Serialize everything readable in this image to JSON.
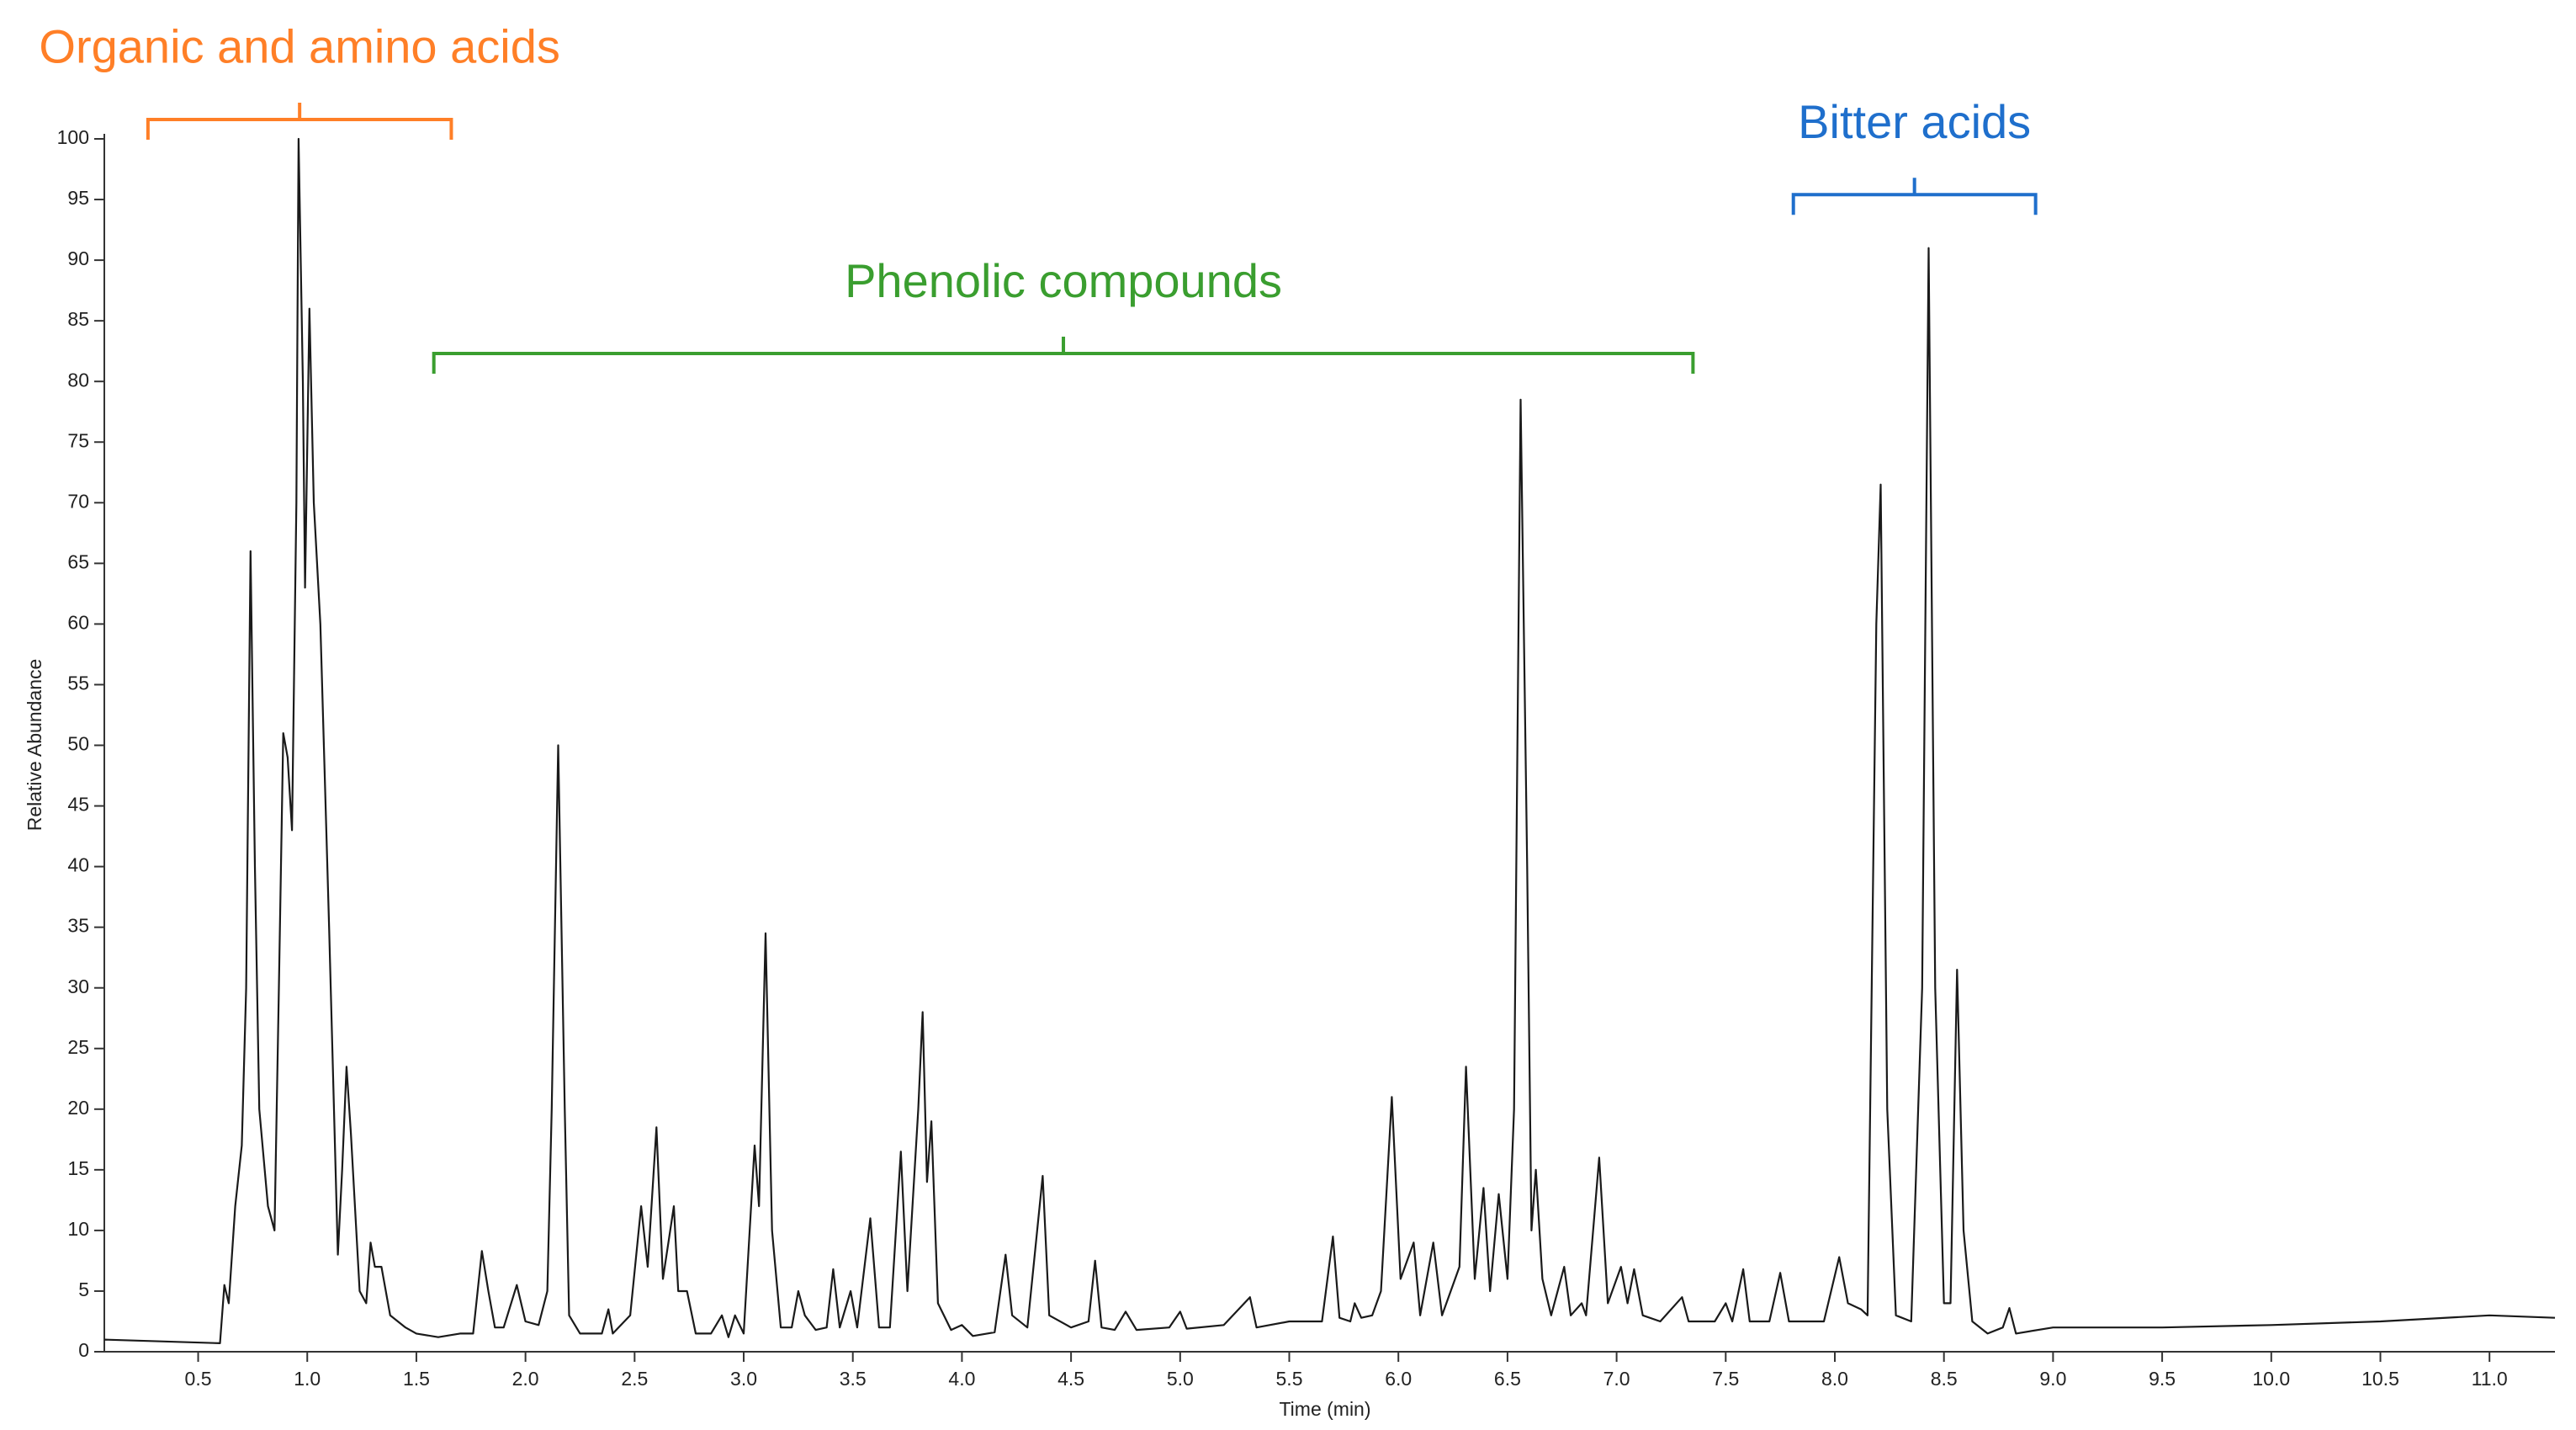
{
  "chart_data": {
    "type": "line",
    "x_label": "Time (min)",
    "y_label": "Relative Abundance",
    "color": "#1a1a1a",
    "xlim": [
      0.07,
      11.3
    ],
    "ylim": [
      0,
      100
    ],
    "xticks": [
      0.5,
      {
        "value": 1,
        "label": "1.0"
      },
      1.5,
      {
        "value": 2,
        "label": "2.0"
      },
      2.5,
      {
        "value": 3,
        "label": "3.0"
      },
      3.5,
      {
        "value": 4,
        "label": "4.0"
      },
      4.5,
      {
        "value": 5,
        "label": "5.0"
      },
      5.5,
      {
        "value": 6,
        "label": "6.0"
      },
      6.5,
      {
        "value": 7,
        "label": "7.0"
      },
      7.5,
      {
        "value": 8,
        "label": "8.0"
      },
      8.5,
      {
        "value": 9,
        "label": "9.0"
      },
      9.5,
      {
        "value": 10,
        "label": "10.0"
      },
      10.5,
      {
        "value": 11,
        "label": "11.0"
      }
    ],
    "yticks": [
      0,
      5,
      10,
      15,
      20,
      25,
      30,
      35,
      40,
      45,
      50,
      55,
      60,
      65,
      70,
      75,
      80,
      85,
      90,
      95,
      100
    ],
    "x": [
      0.07,
      0.6,
      0.62,
      0.64,
      0.67,
      0.7,
      0.72,
      0.74,
      0.76,
      0.78,
      0.82,
      0.85,
      0.87,
      0.89,
      0.91,
      0.93,
      0.95,
      0.96,
      0.98,
      0.99,
      1.01,
      1.03,
      1.06,
      1.1,
      1.14,
      1.16,
      1.18,
      1.2,
      1.24,
      1.27,
      1.29,
      1.31,
      1.34,
      1.38,
      1.45,
      1.5,
      1.6,
      1.7,
      1.76,
      1.8,
      1.83,
      1.86,
      1.9,
      1.96,
      2.0,
      2.06,
      2.1,
      2.12,
      2.15,
      2.18,
      2.2,
      2.25,
      2.35,
      2.38,
      2.4,
      2.48,
      2.53,
      2.56,
      2.6,
      2.63,
      2.68,
      2.7,
      2.74,
      2.78,
      2.85,
      2.9,
      2.93,
      2.96,
      3.0,
      3.05,
      3.07,
      3.1,
      3.13,
      3.17,
      3.22,
      3.25,
      3.28,
      3.33,
      3.38,
      3.41,
      3.44,
      3.49,
      3.52,
      3.58,
      3.62,
      3.67,
      3.72,
      3.75,
      3.8,
      3.82,
      3.84,
      3.86,
      3.89,
      3.95,
      4.0,
      4.05,
      4.15,
      4.2,
      4.23,
      4.3,
      4.37,
      4.4,
      4.5,
      4.58,
      4.61,
      4.64,
      4.7,
      4.75,
      4.8,
      4.95,
      5.0,
      5.03,
      5.2,
      5.32,
      5.35,
      5.5,
      5.65,
      5.7,
      5.73,
      5.78,
      5.8,
      5.83,
      5.88,
      5.92,
      5.97,
      6.01,
      6.07,
      6.1,
      6.16,
      6.2,
      6.28,
      6.31,
      6.35,
      6.39,
      6.42,
      6.46,
      6.5,
      6.53,
      6.56,
      6.59,
      6.61,
      6.63,
      6.66,
      6.7,
      6.76,
      6.79,
      6.84,
      6.86,
      6.92,
      6.96,
      7.02,
      7.05,
      7.08,
      7.12,
      7.2,
      7.3,
      7.33,
      7.45,
      7.5,
      7.53,
      7.58,
      7.61,
      7.7,
      7.75,
      7.79,
      7.95,
      8.02,
      8.06,
      8.12,
      8.15,
      8.19,
      8.21,
      8.24,
      8.28,
      8.35,
      8.4,
      8.43,
      8.46,
      8.5,
      8.53,
      8.56,
      8.59,
      8.63,
      8.7,
      8.77,
      8.8,
      8.83,
      9.0,
      9.5,
      10.0,
      10.5,
      11.0,
      11.3
    ],
    "values": [
      1.0,
      0.7,
      5.5,
      4,
      12,
      17,
      30,
      66,
      40,
      20,
      12,
      10,
      30,
      51,
      49,
      43,
      70,
      100,
      80,
      63,
      86,
      70,
      60,
      35,
      8,
      15,
      23.5,
      18,
      5,
      4,
      9,
      7,
      7,
      3,
      2,
      1.5,
      1.2,
      1.5,
      1.5,
      8.3,
      5,
      2,
      2,
      5.5,
      2.5,
      2.2,
      5,
      20,
      50,
      20,
      3,
      1.5,
      1.5,
      3.5,
      1.5,
      3,
      12,
      7,
      18.5,
      6,
      12,
      5,
      5,
      1.5,
      1.5,
      3,
      1.2,
      3,
      1.5,
      17,
      12,
      34.5,
      10,
      2,
      2,
      5,
      3,
      1.8,
      2,
      6.8,
      2,
      5,
      2,
      11,
      2,
      2,
      16.5,
      5,
      20,
      28,
      14,
      19,
      4,
      1.8,
      2.2,
      1.3,
      1.6,
      8,
      3,
      2,
      14.5,
      3,
      2,
      2.5,
      7.5,
      2,
      1.8,
      3.3,
      1.8,
      2,
      3.3,
      1.9,
      2.2,
      4.5,
      2,
      2.5,
      2.5,
      9.5,
      2.8,
      2.5,
      4,
      2.8,
      3,
      5,
      21,
      6,
      9,
      3,
      9,
      3,
      7,
      23.5,
      6,
      13.5,
      5,
      13,
      6,
      20,
      78.5,
      40,
      10,
      15,
      6,
      3,
      7,
      3,
      4,
      3,
      16,
      4,
      7,
      4,
      6.8,
      3,
      2.5,
      4.5,
      2.5,
      2.5,
      4,
      2.5,
      6.8,
      2.5,
      2.5,
      6.5,
      2.5,
      2.5,
      7.8,
      4,
      3.5,
      3,
      60,
      71.5,
      20,
      3,
      2.5,
      30,
      91,
      30,
      4,
      4,
      31.5,
      10,
      2.5,
      1.5,
      2,
      3.6,
      1.5,
      2,
      2,
      2.2,
      2.5,
      3,
      2.8
    ],
    "annotations": [
      {
        "text": "Organic and amino acids",
        "color": "#ff7f27",
        "xrange": [
          0.27,
          1.66
        ],
        "y": 101.6
      },
      {
        "text": "Phenolic compounds",
        "color": "#3a9e2f",
        "xrange": [
          1.58,
          7.35
        ],
        "y": 82.3
      },
      {
        "text": "Bitter acids",
        "color": "#1f6fcc",
        "xrange": [
          7.81,
          8.92
        ],
        "y": 95.4
      }
    ]
  }
}
